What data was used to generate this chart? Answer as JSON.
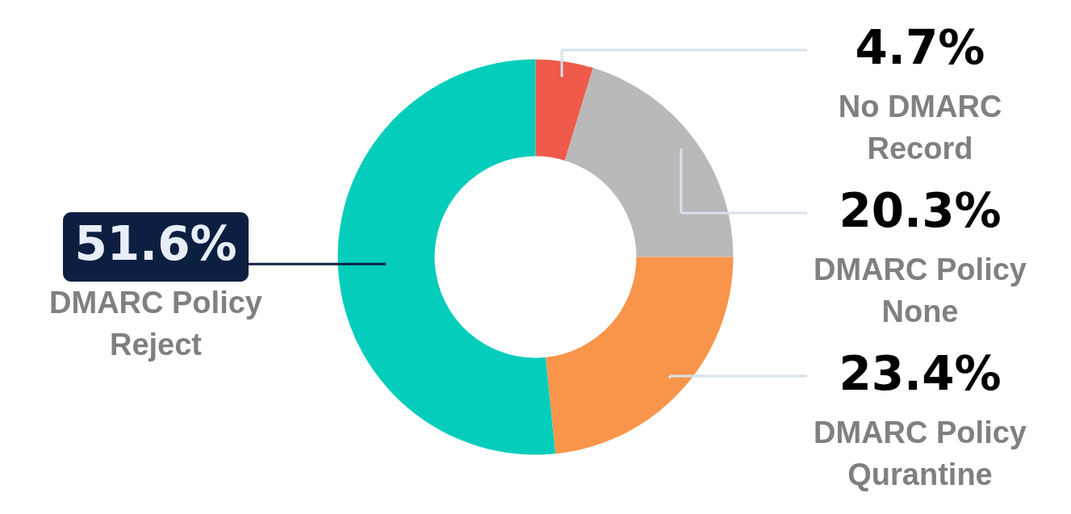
{
  "chart_data": {
    "type": "donut",
    "categories": [
      "No DMARC Record",
      "DMARC Policy None",
      "DMARC Policy Qurantine",
      "DMARC Policy Reject"
    ],
    "values": [
      4.7,
      20.3,
      23.4,
      51.6
    ],
    "colors": [
      "#ef5a4a",
      "#b9b9b9",
      "#f9954b",
      "#05cdbb"
    ],
    "value_labels": [
      "4.7%",
      "20.3%",
      "23.4%",
      "51.6%"
    ]
  }
}
